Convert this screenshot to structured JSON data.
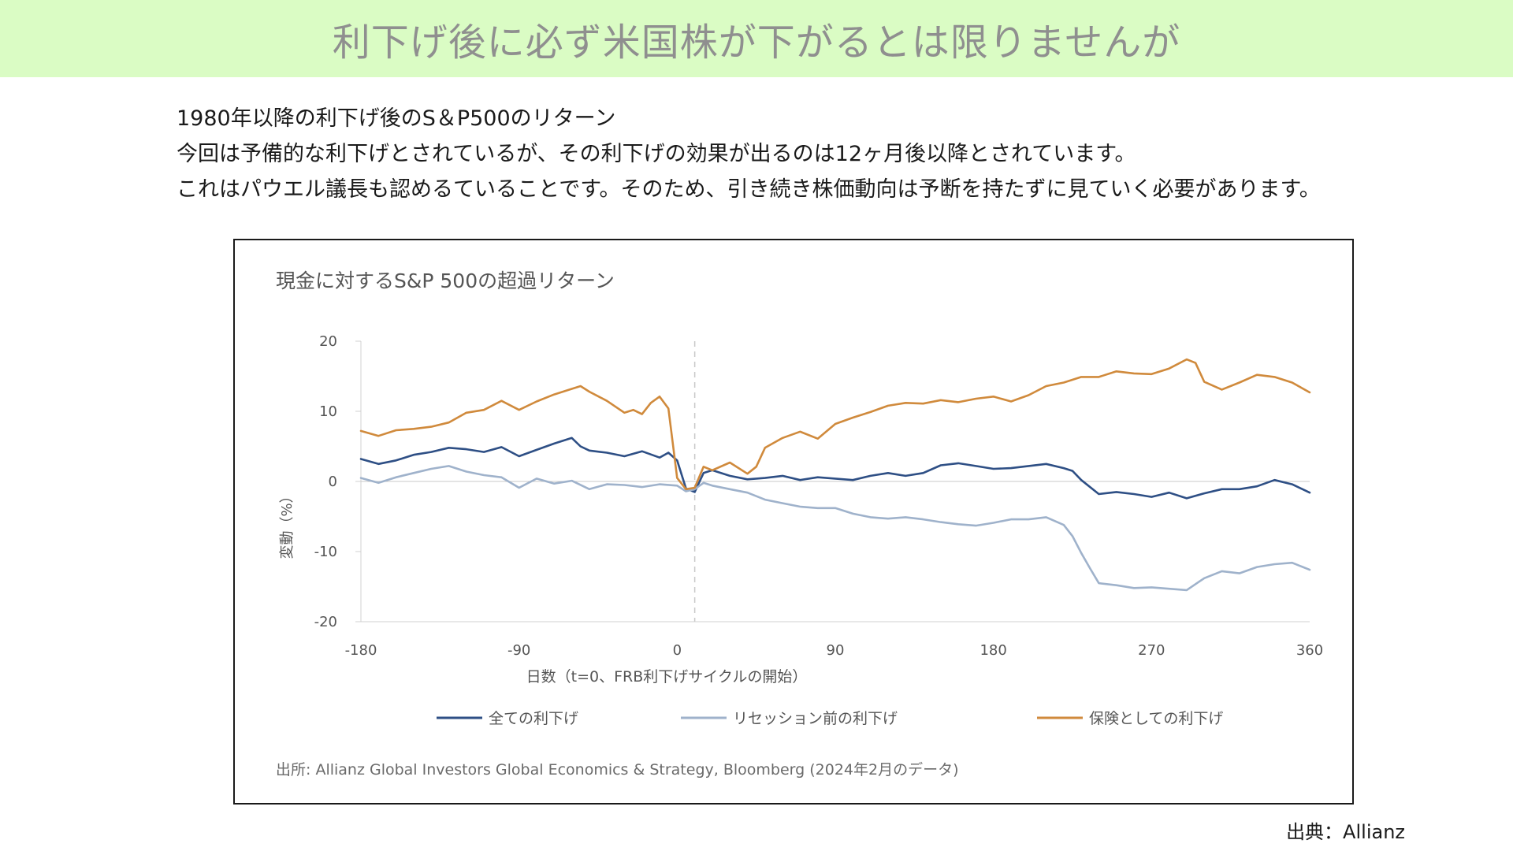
{
  "title": "利下げ後に必ず米国株が下がるとは限りませんが",
  "intro": {
    "line1": "1980年以降の利下げ後のS＆P500のリターン",
    "line2": "今回は予備的な利下げとされているが、その利下げの効果が出るのは12ヶ月後以降とされています。",
    "line3": "これはパウエル議長も認めるていることです。そのため、引き続き株価動向は予断を持たずに見ていく必要があります。"
  },
  "source_footer": "出典：Allianz",
  "chart_data": {
    "type": "line",
    "title": "現金に対するS&P 500の超過リターン",
    "xlabel": "日数（t=0、FRB利下げサイクルの開始）",
    "ylabel": "変動（%）",
    "xlim": [
      -180,
      360
    ],
    "ylim": [
      -20,
      20
    ],
    "x_ticks": [
      -180,
      -90,
      0,
      90,
      180,
      270,
      360
    ],
    "x_tick_labels": [
      "-180",
      "-90",
      "0",
      "90",
      "180",
      "270",
      "360"
    ],
    "y_ticks": [
      20,
      10,
      0,
      -10,
      -20
    ],
    "y_tick_labels": [
      "20",
      "10",
      "0",
      "-10",
      "-20"
    ],
    "vertical_reference_line": 10,
    "horizontal_reference_line": 0,
    "legend_position": "bottom",
    "source_note": "出所: Allianz Global Investors Global Economics & Strategy, Bloomberg (2024年2月のデータ)",
    "series": [
      {
        "name": "全ての利下げ",
        "color": "#2e4f85",
        "x": [
          -180,
          -170,
          -160,
          -150,
          -140,
          -130,
          -120,
          -110,
          -100,
          -90,
          -80,
          -70,
          -60,
          -55,
          -50,
          -40,
          -30,
          -20,
          -10,
          -5,
          0,
          5,
          10,
          15,
          20,
          30,
          40,
          50,
          60,
          70,
          80,
          90,
          100,
          110,
          120,
          130,
          140,
          150,
          160,
          170,
          180,
          190,
          200,
          210,
          220,
          225,
          230,
          240,
          250,
          260,
          270,
          280,
          290,
          300,
          310,
          320,
          330,
          340,
          350,
          360
        ],
        "y": [
          3.2,
          2.5,
          3.0,
          3.8,
          4.2,
          4.8,
          4.6,
          4.2,
          4.9,
          3.6,
          4.5,
          5.4,
          6.2,
          5.0,
          4.4,
          4.1,
          3.6,
          4.3,
          3.4,
          4.1,
          3.0,
          -1.0,
          -1.5,
          1.2,
          1.6,
          0.8,
          0.3,
          0.5,
          0.8,
          0.2,
          0.6,
          0.4,
          0.2,
          0.8,
          1.2,
          0.8,
          1.2,
          2.3,
          2.6,
          2.2,
          1.8,
          1.9,
          2.2,
          2.5,
          1.9,
          1.5,
          0.2,
          -1.8,
          -1.5,
          -1.8,
          -2.2,
          -1.6,
          -2.4,
          -1.7,
          -1.1,
          -1.1,
          -0.7,
          0.2,
          -0.4,
          -1.6
        ]
      },
      {
        "name": "リセッション前の利下げ",
        "color": "#9fb2cb",
        "x": [
          -180,
          -170,
          -160,
          -150,
          -140,
          -130,
          -120,
          -110,
          -100,
          -90,
          -80,
          -70,
          -60,
          -50,
          -40,
          -30,
          -20,
          -10,
          0,
          5,
          10,
          15,
          20,
          30,
          40,
          50,
          60,
          70,
          80,
          90,
          100,
          110,
          120,
          130,
          140,
          150,
          160,
          170,
          180,
          190,
          200,
          210,
          220,
          225,
          230,
          235,
          240,
          250,
          260,
          270,
          280,
          290,
          300,
          310,
          320,
          330,
          340,
          350,
          360
        ],
        "y": [
          0.5,
          -0.2,
          0.6,
          1.2,
          1.8,
          2.2,
          1.4,
          0.9,
          0.6,
          -0.9,
          0.4,
          -0.3,
          0.1,
          -1.1,
          -0.4,
          -0.5,
          -0.8,
          -0.4,
          -0.6,
          -1.4,
          -1.1,
          -0.2,
          -0.6,
          -1.1,
          -1.6,
          -2.6,
          -3.1,
          -3.6,
          -3.8,
          -3.8,
          -4.6,
          -5.1,
          -5.3,
          -5.1,
          -5.4,
          -5.8,
          -6.1,
          -6.3,
          -5.9,
          -5.4,
          -5.4,
          -5.1,
          -6.2,
          -7.8,
          -10.2,
          -12.4,
          -14.5,
          -14.8,
          -15.2,
          -15.1,
          -15.3,
          -15.5,
          -13.8,
          -12.8,
          -13.1,
          -12.2,
          -11.8,
          -11.6,
          -12.6
        ]
      },
      {
        "name": "保険としての利下げ",
        "color": "#d08a3c",
        "x": [
          -180,
          -170,
          -160,
          -150,
          -140,
          -130,
          -120,
          -110,
          -100,
          -90,
          -80,
          -70,
          -60,
          -55,
          -50,
          -40,
          -30,
          -25,
          -20,
          -15,
          -10,
          -5,
          0,
          5,
          10,
          15,
          20,
          30,
          40,
          45,
          50,
          60,
          70,
          80,
          90,
          100,
          110,
          120,
          130,
          140,
          150,
          160,
          170,
          180,
          190,
          200,
          210,
          220,
          230,
          240,
          250,
          260,
          270,
          280,
          290,
          295,
          300,
          310,
          320,
          330,
          340,
          350,
          360
        ],
        "y": [
          7.2,
          6.5,
          7.3,
          7.5,
          7.8,
          8.4,
          9.8,
          10.2,
          11.5,
          10.2,
          11.4,
          12.4,
          13.2,
          13.6,
          12.8,
          11.5,
          9.8,
          10.2,
          9.6,
          11.2,
          12.1,
          10.4,
          0.5,
          -1.1,
          -0.9,
          2.1,
          1.6,
          2.7,
          1.1,
          2.1,
          4.8,
          6.2,
          7.1,
          6.1,
          8.2,
          9.1,
          9.9,
          10.8,
          11.2,
          11.1,
          11.6,
          11.3,
          11.8,
          12.1,
          11.4,
          12.3,
          13.6,
          14.1,
          14.9,
          14.9,
          15.7,
          15.4,
          15.3,
          16.1,
          17.4,
          16.9,
          14.2,
          13.1,
          14.1,
          15.2,
          14.9,
          14.1,
          12.7
        ]
      }
    ]
  }
}
